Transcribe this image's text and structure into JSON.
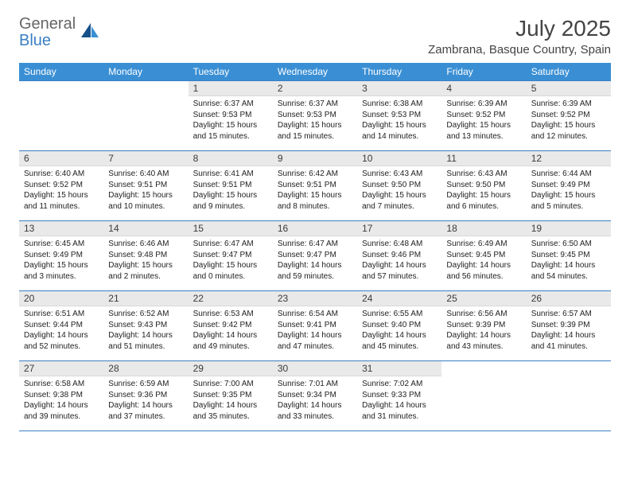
{
  "brand": {
    "general": "General",
    "blue": "Blue"
  },
  "title": "July 2025",
  "location": "Zambrana, Basque Country, Spain",
  "colors": {
    "header_bg": "#3a8fd4",
    "header_text": "#ffffff",
    "daynum_bg": "#e9e9e9",
    "rule": "#3a7fc4",
    "logo_accent": "#3a7fc4",
    "logo_dark": "#16508a"
  },
  "weekdays": [
    "Sunday",
    "Monday",
    "Tuesday",
    "Wednesday",
    "Thursday",
    "Friday",
    "Saturday"
  ],
  "weeks": [
    [
      null,
      null,
      {
        "n": "1",
        "sr": "Sunrise: 6:37 AM",
        "ss": "Sunset: 9:53 PM",
        "dl": "Daylight: 15 hours and 15 minutes."
      },
      {
        "n": "2",
        "sr": "Sunrise: 6:37 AM",
        "ss": "Sunset: 9:53 PM",
        "dl": "Daylight: 15 hours and 15 minutes."
      },
      {
        "n": "3",
        "sr": "Sunrise: 6:38 AM",
        "ss": "Sunset: 9:53 PM",
        "dl": "Daylight: 15 hours and 14 minutes."
      },
      {
        "n": "4",
        "sr": "Sunrise: 6:39 AM",
        "ss": "Sunset: 9:52 PM",
        "dl": "Daylight: 15 hours and 13 minutes."
      },
      {
        "n": "5",
        "sr": "Sunrise: 6:39 AM",
        "ss": "Sunset: 9:52 PM",
        "dl": "Daylight: 15 hours and 12 minutes."
      }
    ],
    [
      {
        "n": "6",
        "sr": "Sunrise: 6:40 AM",
        "ss": "Sunset: 9:52 PM",
        "dl": "Daylight: 15 hours and 11 minutes."
      },
      {
        "n": "7",
        "sr": "Sunrise: 6:40 AM",
        "ss": "Sunset: 9:51 PM",
        "dl": "Daylight: 15 hours and 10 minutes."
      },
      {
        "n": "8",
        "sr": "Sunrise: 6:41 AM",
        "ss": "Sunset: 9:51 PM",
        "dl": "Daylight: 15 hours and 9 minutes."
      },
      {
        "n": "9",
        "sr": "Sunrise: 6:42 AM",
        "ss": "Sunset: 9:51 PM",
        "dl": "Daylight: 15 hours and 8 minutes."
      },
      {
        "n": "10",
        "sr": "Sunrise: 6:43 AM",
        "ss": "Sunset: 9:50 PM",
        "dl": "Daylight: 15 hours and 7 minutes."
      },
      {
        "n": "11",
        "sr": "Sunrise: 6:43 AM",
        "ss": "Sunset: 9:50 PM",
        "dl": "Daylight: 15 hours and 6 minutes."
      },
      {
        "n": "12",
        "sr": "Sunrise: 6:44 AM",
        "ss": "Sunset: 9:49 PM",
        "dl": "Daylight: 15 hours and 5 minutes."
      }
    ],
    [
      {
        "n": "13",
        "sr": "Sunrise: 6:45 AM",
        "ss": "Sunset: 9:49 PM",
        "dl": "Daylight: 15 hours and 3 minutes."
      },
      {
        "n": "14",
        "sr": "Sunrise: 6:46 AM",
        "ss": "Sunset: 9:48 PM",
        "dl": "Daylight: 15 hours and 2 minutes."
      },
      {
        "n": "15",
        "sr": "Sunrise: 6:47 AM",
        "ss": "Sunset: 9:47 PM",
        "dl": "Daylight: 15 hours and 0 minutes."
      },
      {
        "n": "16",
        "sr": "Sunrise: 6:47 AM",
        "ss": "Sunset: 9:47 PM",
        "dl": "Daylight: 14 hours and 59 minutes."
      },
      {
        "n": "17",
        "sr": "Sunrise: 6:48 AM",
        "ss": "Sunset: 9:46 PM",
        "dl": "Daylight: 14 hours and 57 minutes."
      },
      {
        "n": "18",
        "sr": "Sunrise: 6:49 AM",
        "ss": "Sunset: 9:45 PM",
        "dl": "Daylight: 14 hours and 56 minutes."
      },
      {
        "n": "19",
        "sr": "Sunrise: 6:50 AM",
        "ss": "Sunset: 9:45 PM",
        "dl": "Daylight: 14 hours and 54 minutes."
      }
    ],
    [
      {
        "n": "20",
        "sr": "Sunrise: 6:51 AM",
        "ss": "Sunset: 9:44 PM",
        "dl": "Daylight: 14 hours and 52 minutes."
      },
      {
        "n": "21",
        "sr": "Sunrise: 6:52 AM",
        "ss": "Sunset: 9:43 PM",
        "dl": "Daylight: 14 hours and 51 minutes."
      },
      {
        "n": "22",
        "sr": "Sunrise: 6:53 AM",
        "ss": "Sunset: 9:42 PM",
        "dl": "Daylight: 14 hours and 49 minutes."
      },
      {
        "n": "23",
        "sr": "Sunrise: 6:54 AM",
        "ss": "Sunset: 9:41 PM",
        "dl": "Daylight: 14 hours and 47 minutes."
      },
      {
        "n": "24",
        "sr": "Sunrise: 6:55 AM",
        "ss": "Sunset: 9:40 PM",
        "dl": "Daylight: 14 hours and 45 minutes."
      },
      {
        "n": "25",
        "sr": "Sunrise: 6:56 AM",
        "ss": "Sunset: 9:39 PM",
        "dl": "Daylight: 14 hours and 43 minutes."
      },
      {
        "n": "26",
        "sr": "Sunrise: 6:57 AM",
        "ss": "Sunset: 9:39 PM",
        "dl": "Daylight: 14 hours and 41 minutes."
      }
    ],
    [
      {
        "n": "27",
        "sr": "Sunrise: 6:58 AM",
        "ss": "Sunset: 9:38 PM",
        "dl": "Daylight: 14 hours and 39 minutes."
      },
      {
        "n": "28",
        "sr": "Sunrise: 6:59 AM",
        "ss": "Sunset: 9:36 PM",
        "dl": "Daylight: 14 hours and 37 minutes."
      },
      {
        "n": "29",
        "sr": "Sunrise: 7:00 AM",
        "ss": "Sunset: 9:35 PM",
        "dl": "Daylight: 14 hours and 35 minutes."
      },
      {
        "n": "30",
        "sr": "Sunrise: 7:01 AM",
        "ss": "Sunset: 9:34 PM",
        "dl": "Daylight: 14 hours and 33 minutes."
      },
      {
        "n": "31",
        "sr": "Sunrise: 7:02 AM",
        "ss": "Sunset: 9:33 PM",
        "dl": "Daylight: 14 hours and 31 minutes."
      },
      null,
      null
    ]
  ]
}
